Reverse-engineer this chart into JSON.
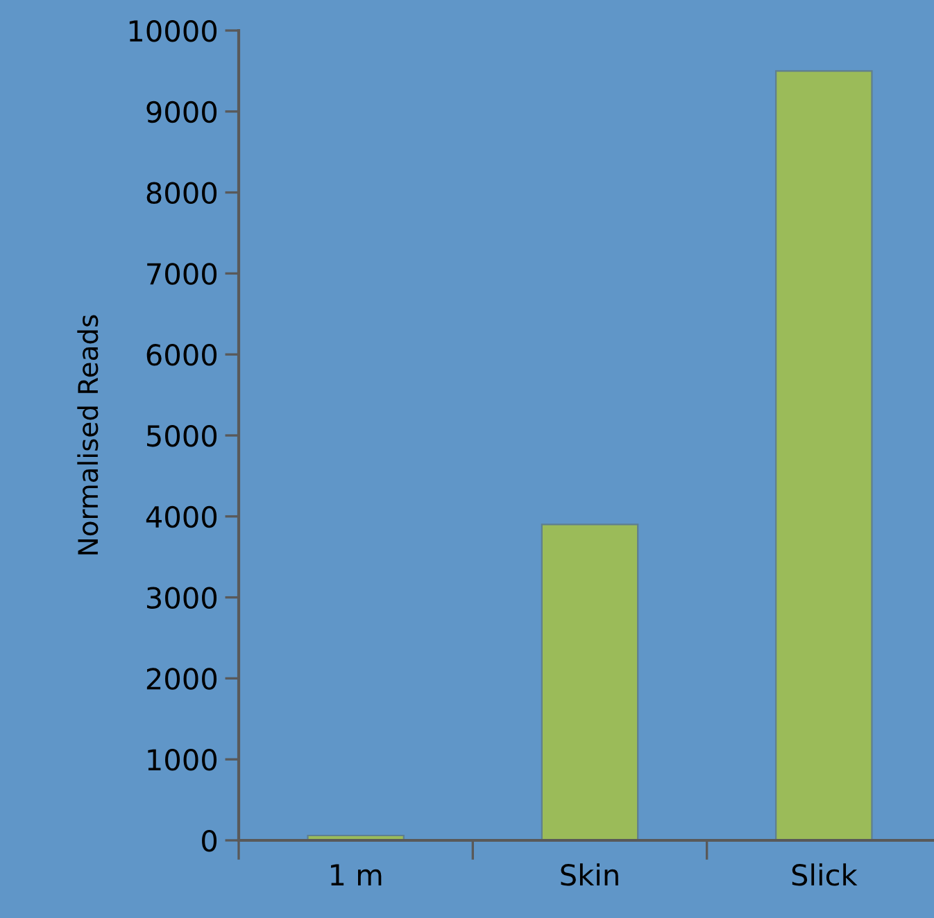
{
  "chart_data": {
    "type": "bar",
    "ylabel": "Normalised Reads",
    "categories": [
      "1 m",
      "Skin",
      "Slick"
    ],
    "values": [
      60,
      3900,
      9500
    ],
    "color": "#9bbb59",
    "ylim": [
      0,
      10000
    ],
    "yticks": [
      0,
      1000,
      2000,
      3000,
      4000,
      5000,
      6000,
      7000,
      8000,
      9000,
      10000
    ],
    "grid": false
  }
}
